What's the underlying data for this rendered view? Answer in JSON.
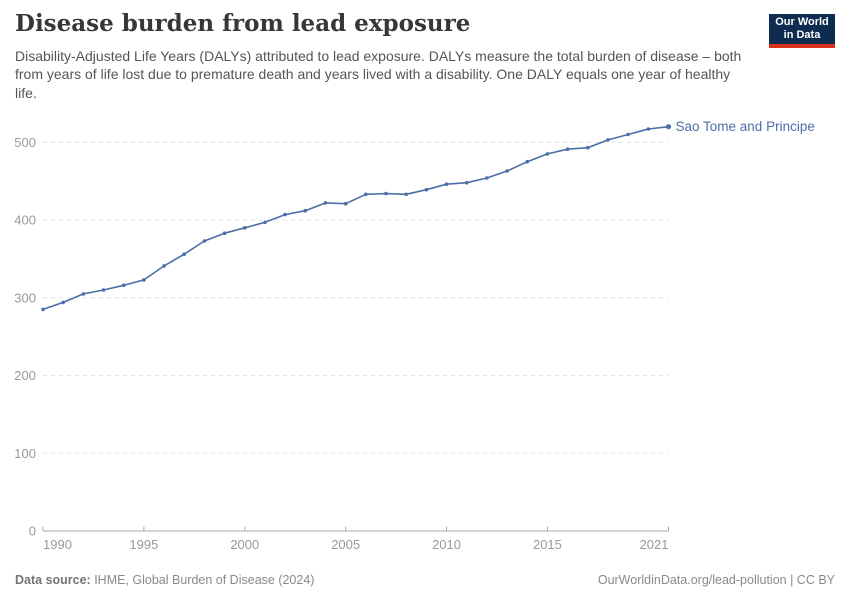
{
  "header": {
    "title": "Disease burden from lead exposure",
    "subtitle": "Disability-Adjusted Life Years (DALYs) attributed to lead exposure. DALYs measure the total burden of disease – both from years of life lost due to premature death and years lived with a disability. One DALY equals one year of healthy life.",
    "logo": {
      "line1": "Our World",
      "line2": "in Data",
      "bg_color": "#0d2c50",
      "accent_color": "#d8341c"
    }
  },
  "chart_data": {
    "type": "line",
    "title": "Disease burden from lead exposure",
    "x": [
      1990,
      1991,
      1992,
      1993,
      1994,
      1995,
      1996,
      1997,
      1998,
      1999,
      2000,
      2001,
      2002,
      2003,
      2004,
      2005,
      2006,
      2007,
      2008,
      2009,
      2010,
      2011,
      2012,
      2013,
      2014,
      2015,
      2016,
      2017,
      2018,
      2019,
      2020,
      2021
    ],
    "series": [
      {
        "name": "Sao Tome and Principe",
        "color": "#4C6EA8",
        "values": [
          285,
          294,
          305,
          310,
          316,
          323,
          341,
          356,
          373,
          383,
          390,
          397,
          407,
          412,
          422,
          421,
          433,
          434,
          433,
          439,
          446,
          448,
          454,
          463,
          475,
          485,
          491,
          493,
          503,
          510,
          517,
          520
        ]
      }
    ],
    "x_ticks": [
      1990,
      1995,
      2000,
      2005,
      2010,
      2015,
      2021
    ],
    "y_ticks": [
      0,
      100,
      200,
      300,
      400,
      500
    ],
    "xlim": [
      1990,
      2021
    ],
    "ylim": [
      0,
      500
    ],
    "grid": "horizontal-dashed",
    "legend_position": "end-of-line-label"
  },
  "footer": {
    "source_label": "Data source:",
    "source_text": " IHME, Global Burden of Disease (2024)",
    "rights": "OurWorldinData.org/lead-pollution | CC BY"
  }
}
